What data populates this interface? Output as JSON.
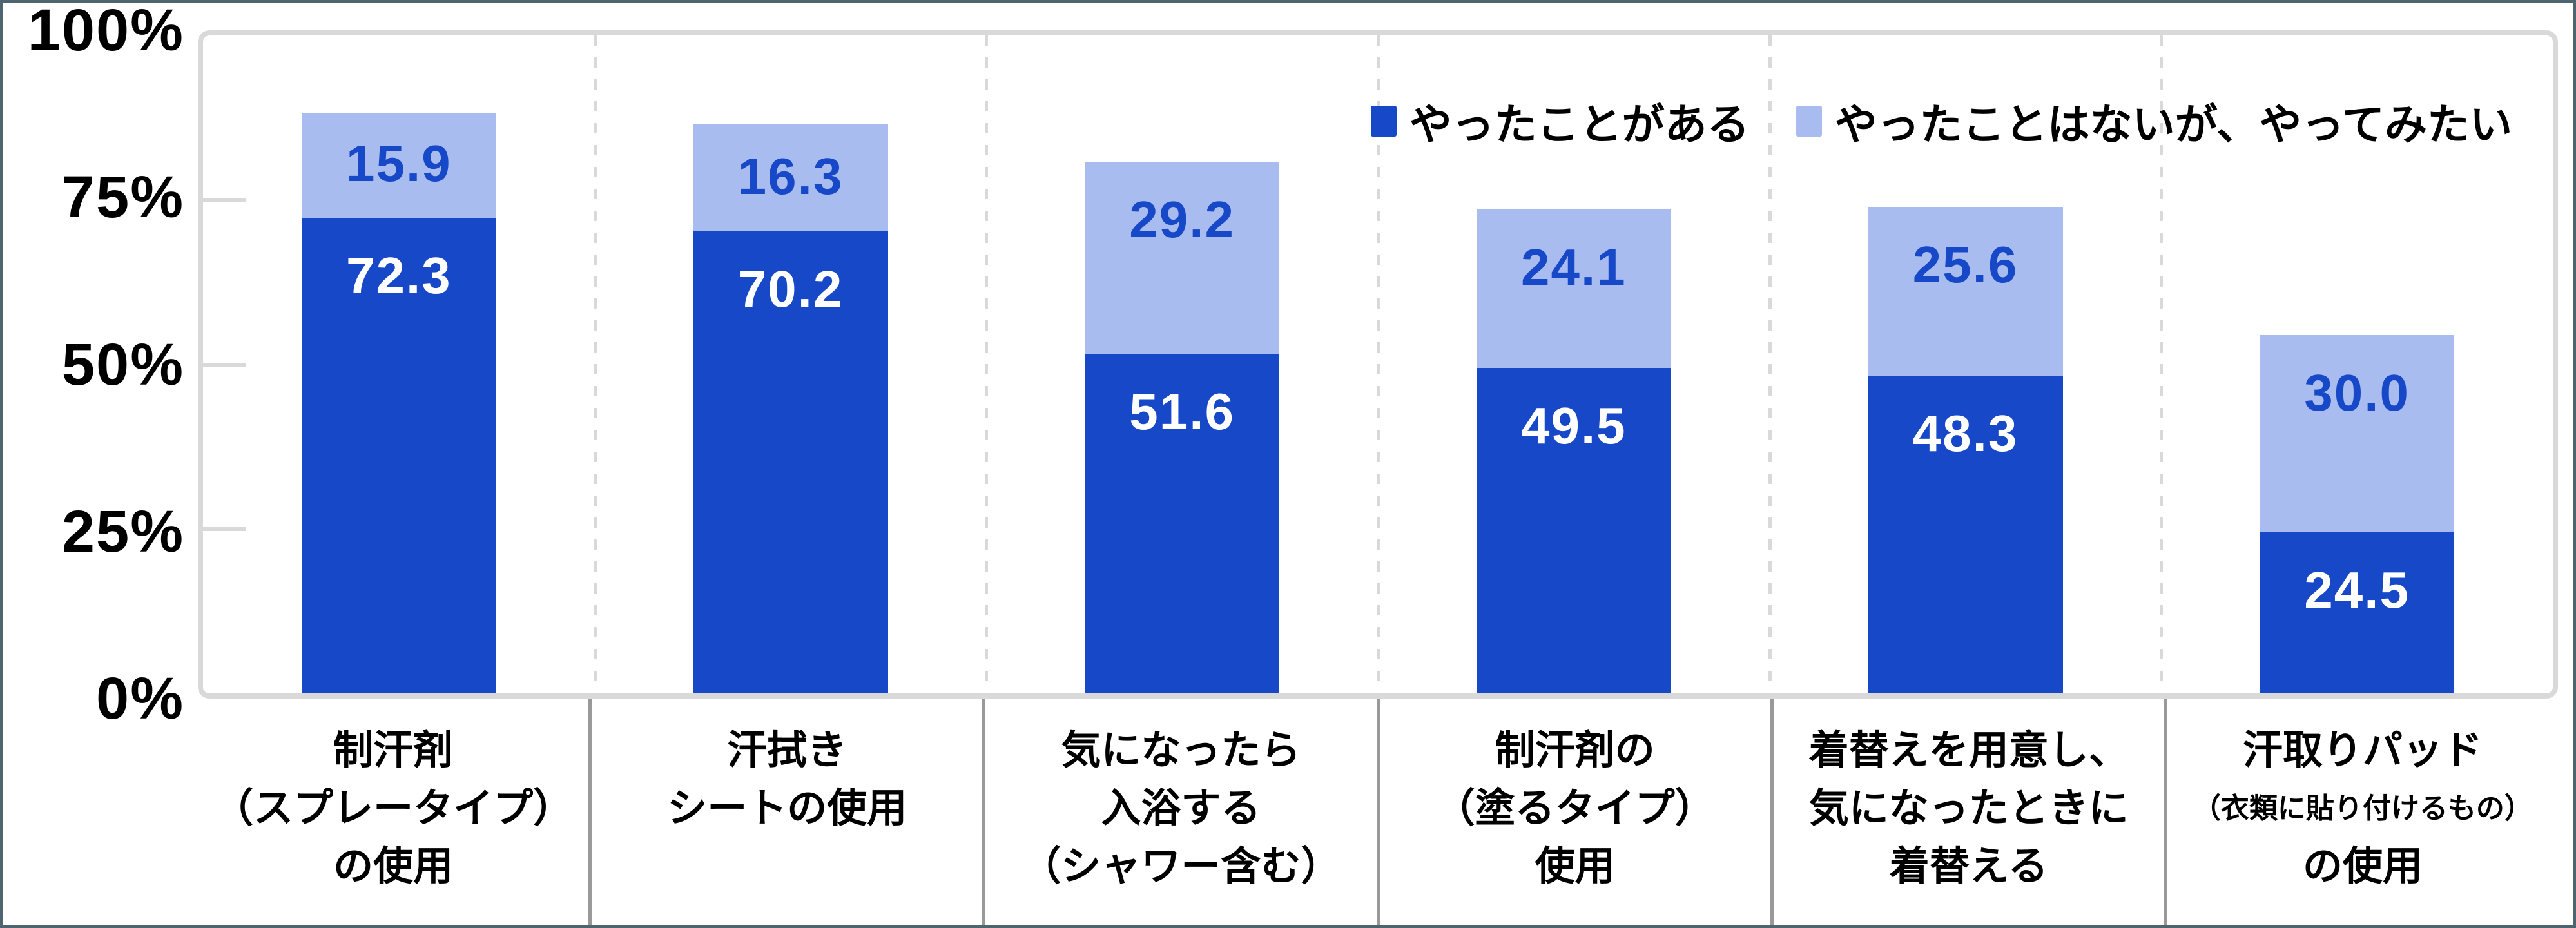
{
  "chart_data": {
    "type": "bar",
    "stacked": true,
    "title": "",
    "xlabel": "",
    "ylabel": "",
    "ylim": [
      0,
      100
    ],
    "grid": "left-tick-stubs-only",
    "legend_position": "top-right",
    "y_ticks": [
      {
        "label": "100%",
        "value": 100
      },
      {
        "label": "75%",
        "value": 75
      },
      {
        "label": "50%",
        "value": 50
      },
      {
        "label": "25%",
        "value": 25
      },
      {
        "label": "0%",
        "value": 0
      }
    ],
    "categories": [
      {
        "lines": [
          "制汗剤",
          "（スプレータイプ）",
          "の使用"
        ],
        "small_lines": []
      },
      {
        "lines": [
          "汗拭き",
          "シートの使用"
        ],
        "small_lines": []
      },
      {
        "lines": [
          "気になったら",
          "入浴する",
          "（シャワー含む）"
        ],
        "small_lines": []
      },
      {
        "lines": [
          "制汗剤の",
          "（塗るタイプ）",
          "使用"
        ],
        "small_lines": []
      },
      {
        "lines": [
          "着替えを用意し、",
          "気になったときに",
          "着替える"
        ],
        "small_lines": []
      },
      {
        "lines": [
          "汗取りパッド",
          "（衣類に貼り付けるもの）",
          "の使用"
        ],
        "small_lines": [
          1
        ]
      }
    ],
    "series": [
      {
        "name": "やったことがある",
        "color": "#1648c8",
        "label_color": "#ffffff",
        "values": [
          72.3,
          70.2,
          51.6,
          49.5,
          48.3,
          24.5
        ]
      },
      {
        "name": "やったことはないが、やってみたい",
        "color": "#a9bcef",
        "label_color": "#1648c8",
        "values": [
          15.9,
          16.3,
          29.2,
          24.1,
          25.6,
          30.0
        ]
      }
    ]
  },
  "colors": {
    "background": "#ffffff",
    "canvas_border": "#4e6570",
    "plot_border": "#d9d9d9",
    "plot_separator": "#d9d9d9",
    "label_separator": "#999999",
    "axis_text": "#000000"
  }
}
